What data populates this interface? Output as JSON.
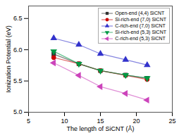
{
  "chart_data": {
    "type": "line",
    "xlabel": "The length of SiCNT (Å)",
    "ylabel": "Ionization Potential (eV)",
    "x": [
      8.5,
      12.0,
      15.0,
      18.5,
      21.5
    ],
    "series": [
      {
        "name": "Open-end (4,4) SiCNT",
        "color": "#333333",
        "marker": "square",
        "values": [
          5.93,
          5.775,
          5.665,
          5.595,
          5.545
        ]
      },
      {
        "name": "Si-rich-end (7,0) SiCNT",
        "color": "#cc0000",
        "marker": "circle",
        "values": [
          5.875,
          5.775,
          5.665,
          5.59,
          5.525
        ]
      },
      {
        "name": "C-rich-end (7,0) SiCNT",
        "color": "#3333cc",
        "marker": "triangle-up",
        "values": [
          6.185,
          6.08,
          5.935,
          5.84,
          5.755
        ]
      },
      {
        "name": "Si-rich-end (5,3) SiCNT",
        "color": "#009944",
        "marker": "triangle-down",
        "values": [
          5.975,
          5.775,
          5.665,
          5.595,
          5.545
        ]
      },
      {
        "name": "C-rich-end (5,3) SiCNT",
        "color": "#cc44bb",
        "marker": "triangle-left",
        "values": [
          5.79,
          5.59,
          5.41,
          5.3,
          5.195
        ]
      }
    ],
    "xlim": [
      5,
      25
    ],
    "ylim": [
      5.0,
      6.7
    ],
    "xticks": [
      5,
      10,
      15,
      20,
      25
    ],
    "yticks": [
      {
        "value": 5.0,
        "label": "5.0"
      },
      5.5,
      {
        "value": 6.0,
        "label": "6.0"
      },
      6.5
    ],
    "grid": false,
    "legend": "upper right"
  }
}
